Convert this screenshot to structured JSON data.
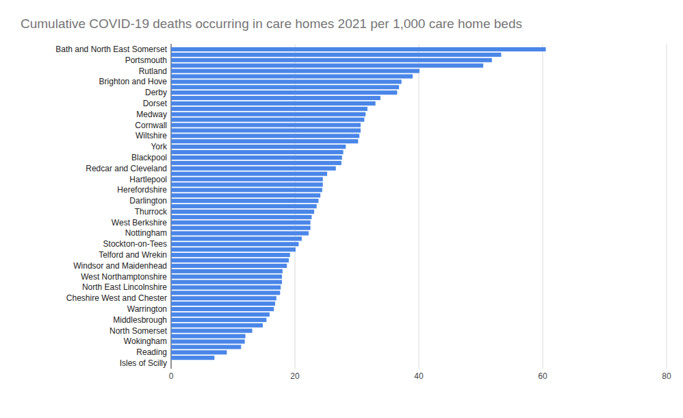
{
  "chart_data": {
    "type": "bar",
    "orientation": "horizontal",
    "title": "Cumulative COVID-19 deaths occurring in care homes 2021 per 1,000 care home beds",
    "categories": [
      "Bath and North East Somerset",
      null,
      "Portsmouth",
      null,
      "Rutland",
      null,
      "Brighton and Hove",
      null,
      "Derby",
      null,
      "Dorset",
      null,
      "Medway",
      null,
      "Cornwall",
      null,
      "Wiltshire",
      null,
      "York",
      null,
      "Blackpool",
      null,
      "Redcar and Cleveland",
      null,
      "Hartlepool",
      null,
      "Herefordshire",
      null,
      "Darlington",
      null,
      "Thurrock",
      null,
      "West Berkshire",
      null,
      "Nottingham",
      null,
      "Stockton-on-Tees",
      null,
      "Telford and Wrekin",
      null,
      "Windsor and Maidenhead",
      null,
      "West Northamptonshire",
      null,
      "North East Lincolnshire",
      null,
      "Cheshire West and Chester",
      null,
      "Warrington",
      null,
      "Middlesbrough",
      null,
      "North Somerset",
      null,
      "Wokingham",
      null,
      "Reading",
      null,
      "Isles of Scilly"
    ],
    "values": [
      60.5,
      53.3,
      51.8,
      50.4,
      40.1,
      39.0,
      37.2,
      36.8,
      36.5,
      33.8,
      33.0,
      31.7,
      31.4,
      31.2,
      30.6,
      30.6,
      30.4,
      30.2,
      28.2,
      27.8,
      27.6,
      27.5,
      26.6,
      25.2,
      24.5,
      24.5,
      24.4,
      24.1,
      23.8,
      23.5,
      23.1,
      22.7,
      22.5,
      22.5,
      22.2,
      21.1,
      20.6,
      20.1,
      19.2,
      19.0,
      18.7,
      18.0,
      17.9,
      17.9,
      17.7,
      17.6,
      17.0,
      16.8,
      16.6,
      15.9,
      15.4,
      14.8,
      13.1,
      12.0,
      11.9,
      11.3,
      9.0,
      7.0,
      0
    ],
    "color": "#4a86e8",
    "xlim": [
      0,
      80
    ],
    "xticks": [
      0,
      20,
      40,
      60,
      80
    ],
    "grid": true
  }
}
